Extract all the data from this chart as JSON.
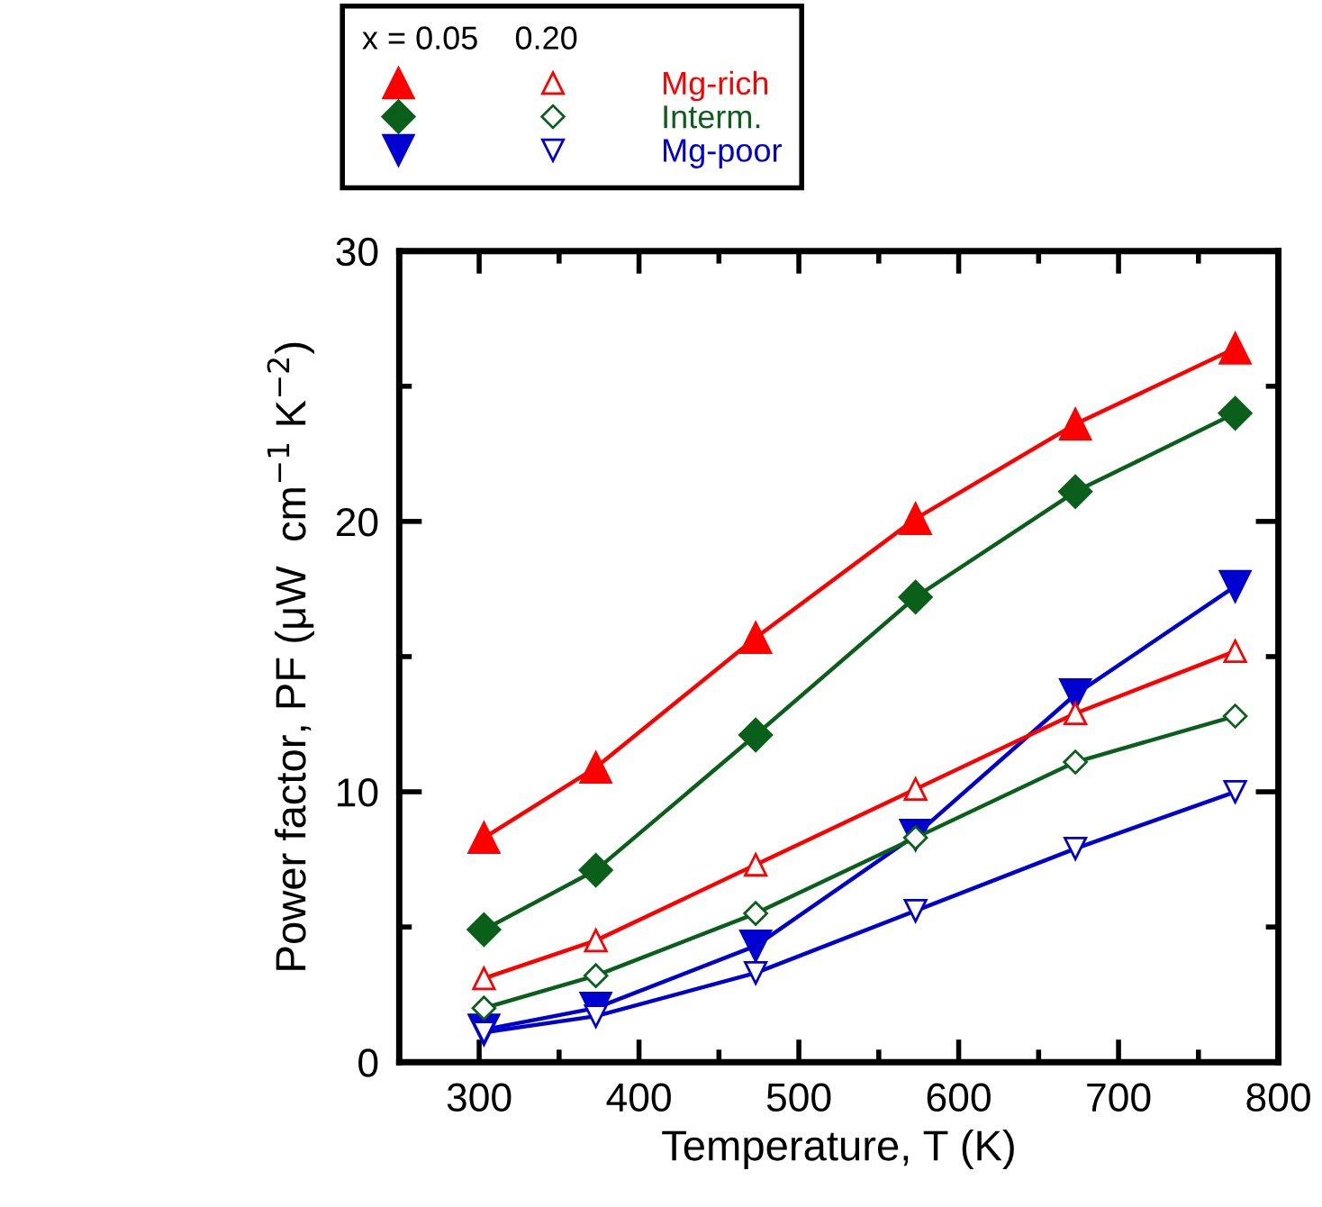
{
  "chart_data": {
    "type": "line",
    "xlabel": "Temperature, T (K)",
    "ylabel": "Power factor, PF (μW  cm$^{−1}$ K$^{−2}$)",
    "legend_title": "x = 0.05    0.20",
    "legend": "top left",
    "x": [
      303,
      373,
      473,
      573,
      673,
      773
    ],
    "xlim": [
      250,
      800
    ],
    "xticks": [
      300,
      {
        "value": 350,
        "label": null
      },
      400,
      {
        "value": 450,
        "label": null
      },
      500,
      {
        "value": 550,
        "label": null
      },
      600,
      {
        "value": 650,
        "label": null
      },
      700,
      {
        "value": 750,
        "label": null
      },
      800
    ],
    "ylim": [
      0,
      30
    ],
    "yticks": [
      0,
      {
        "value": 5,
        "label": null
      },
      10,
      {
        "value": 15,
        "label": null
      },
      20,
      {
        "value": 25,
        "label": null
      },
      30
    ],
    "line_style": "solid",
    "series": [
      {
        "name": "Mg-rich",
        "color": "#ff0000",
        "marker": "triangle",
        "values": [
          8.3,
          10.9,
          15.7,
          20.1,
          23.6,
          26.4
        ]
      },
      {
        "name": "Interm.",
        "color": "#0a5f1a",
        "marker": "diamond",
        "values": [
          4.9,
          7.1,
          12.1,
          17.2,
          21.1,
          24.0
        ]
      },
      {
        "name": "Mg-poor",
        "color": "#0000d0",
        "marker": "triangle_down",
        "values": [
          1.2,
          2.0,
          4.3,
          8.4,
          13.6,
          17.6
        ]
      },
      {
        "color": "#ff0000",
        "marker": "triangle_open",
        "values": [
          3.1,
          4.5,
          7.3,
          10.1,
          12.9,
          15.2
        ]
      },
      {
        "color": "#0a5f1a",
        "marker": "diamond_open",
        "values": [
          2.0,
          3.2,
          5.5,
          8.3,
          11.1,
          12.8
        ]
      },
      {
        "color": "#0000d0",
        "marker": "triangle_down_open",
        "values": [
          1.1,
          1.7,
          3.3,
          5.6,
          7.9,
          10.0
        ]
      }
    ]
  }
}
